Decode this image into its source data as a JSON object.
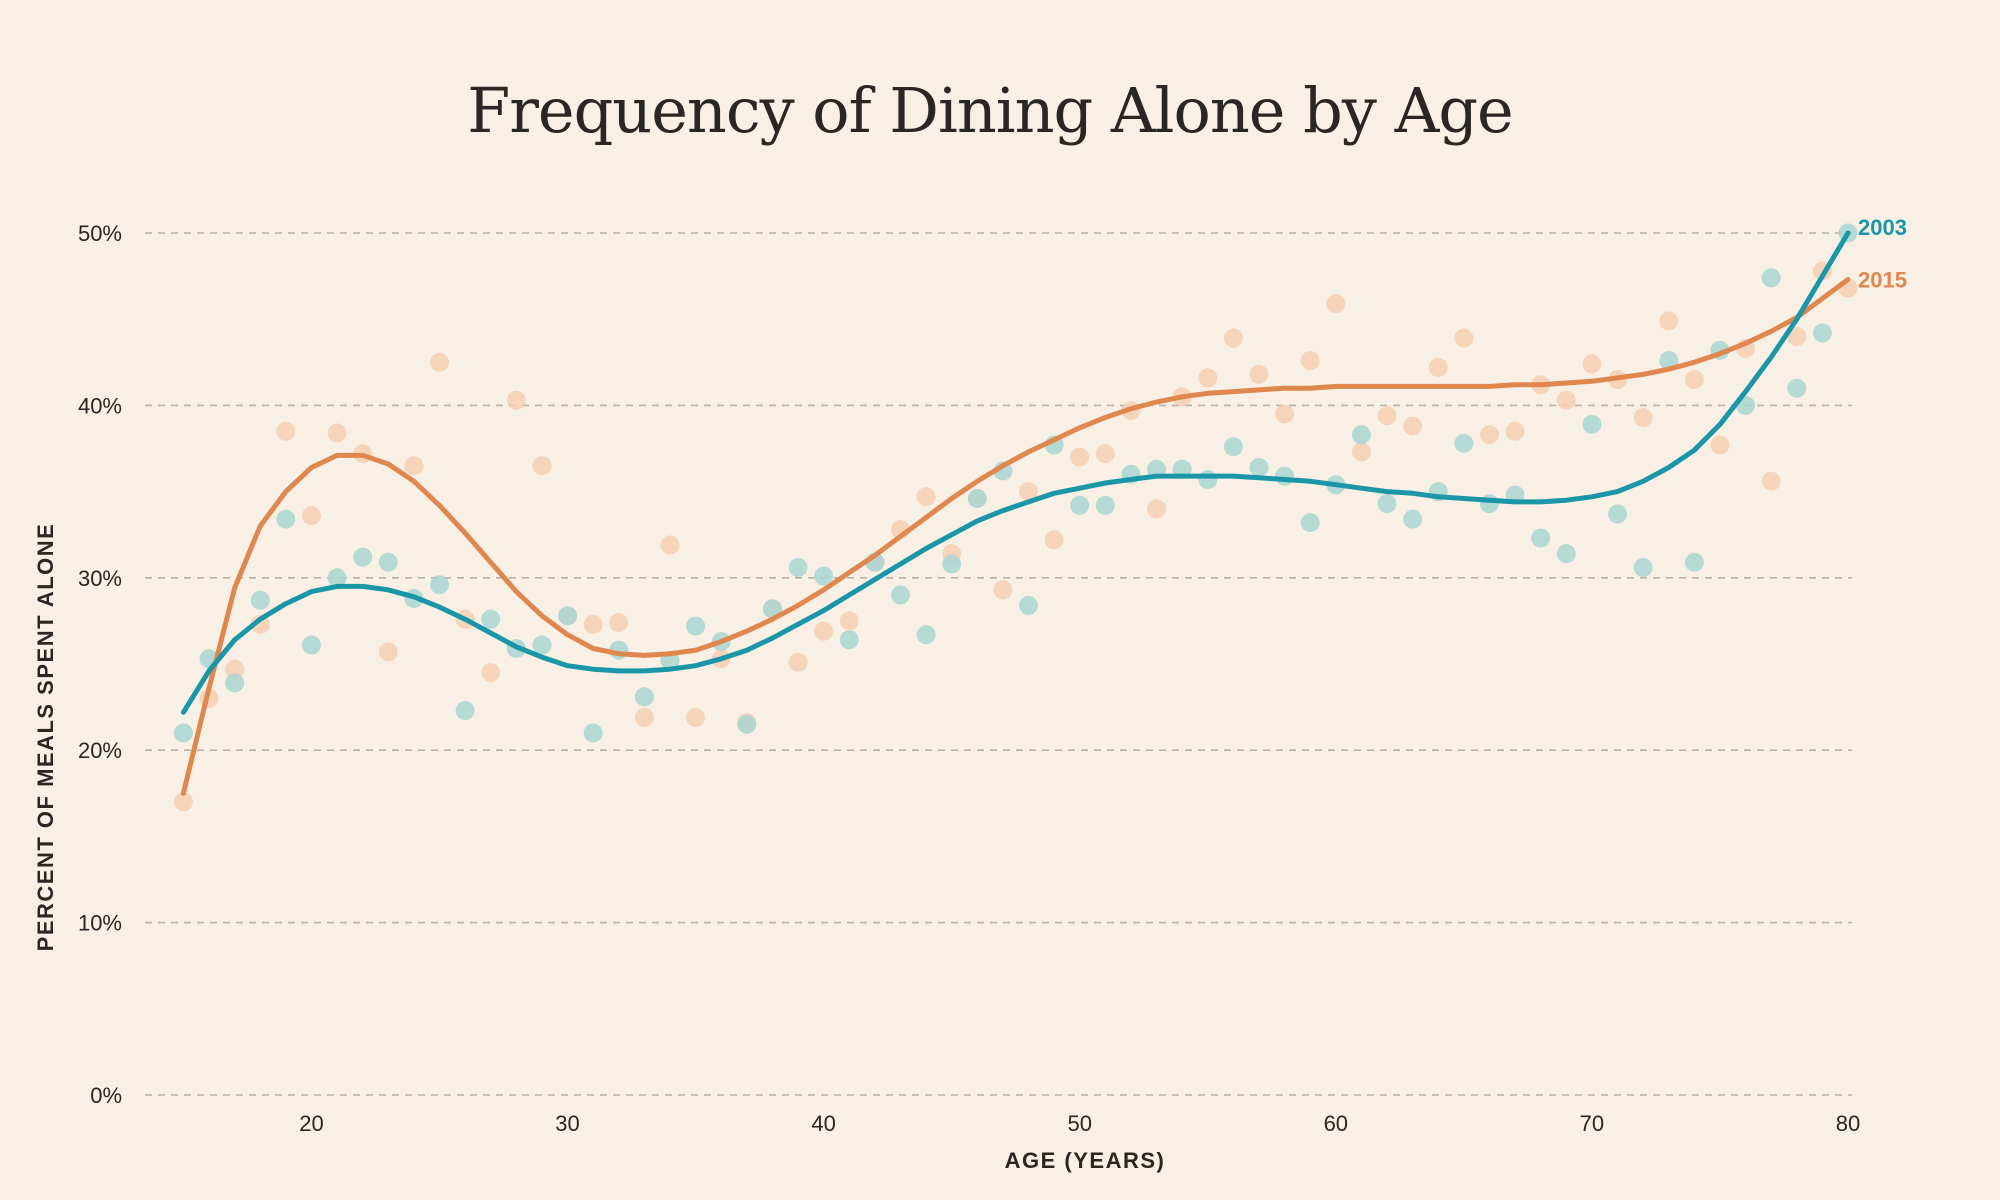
{
  "chart_data": {
    "type": "scatter",
    "title": "Frequency of Dining Alone by Age",
    "xlabel": "AGE (YEARS)",
    "ylabel": "PERCENT OF MEALS SPENT ALONE",
    "xlim": [
      13.5,
      80
    ],
    "ylim": [
      0,
      50
    ],
    "xticks": [
      20,
      30,
      40,
      50,
      60,
      70,
      80
    ],
    "yticks": [
      0,
      10,
      20,
      30,
      40,
      50
    ],
    "ytick_labels": [
      "0%",
      "10%",
      "20%",
      "30%",
      "40%",
      "50%"
    ],
    "grid": "horizontal-dashed",
    "series_label_placement": "right-end",
    "series": [
      {
        "name": "2003",
        "color": "#1a96a8",
        "point_color": "#a9d5d1",
        "x": [
          15,
          16,
          17,
          18,
          19,
          20,
          21,
          22,
          23,
          24,
          25,
          26,
          27,
          28,
          29,
          30,
          31,
          32,
          33,
          34,
          35,
          36,
          37,
          38,
          39,
          40,
          41,
          42,
          43,
          44,
          45,
          46,
          47,
          48,
          49,
          50,
          51,
          52,
          53,
          54,
          55,
          56,
          57,
          58,
          59,
          60,
          61,
          62,
          63,
          64,
          65,
          66,
          67,
          68,
          69,
          70,
          71,
          72,
          73,
          74,
          75,
          76,
          77,
          78,
          79,
          80
        ],
        "y": [
          21.0,
          25.3,
          23.9,
          28.7,
          33.4,
          26.1,
          30.0,
          31.2,
          30.9,
          28.8,
          29.6,
          22.3,
          27.6,
          25.9,
          26.1,
          27.8,
          21.0,
          25.8,
          23.1,
          25.2,
          27.2,
          26.3,
          21.5,
          28.2,
          30.6,
          30.1,
          26.4,
          30.9,
          29.0,
          26.7,
          30.8,
          34.6,
          36.2,
          28.4,
          37.7,
          34.2,
          34.2,
          36.0,
          36.3,
          36.3,
          35.7,
          37.6,
          36.4,
          35.9,
          33.2,
          35.4,
          38.3,
          34.3,
          33.4,
          35.0,
          37.8,
          34.3,
          34.8,
          32.3,
          31.4,
          38.9,
          33.7,
          30.6,
          42.6,
          30.9,
          43.2,
          40.0,
          47.4,
          41.0,
          44.2,
          50.0
        ],
        "trend_x": [
          15,
          16,
          17,
          18,
          19,
          20,
          21,
          22,
          23,
          24,
          25,
          26,
          27,
          28,
          29,
          30,
          31,
          32,
          33,
          34,
          35,
          36,
          37,
          38,
          39,
          40,
          41,
          42,
          43,
          44,
          45,
          46,
          47,
          48,
          49,
          50,
          51,
          52,
          53,
          54,
          55,
          56,
          57,
          58,
          59,
          60,
          61,
          62,
          63,
          64,
          65,
          66,
          67,
          68,
          69,
          70,
          71,
          72,
          73,
          74,
          75,
          76,
          77,
          78,
          79,
          80
        ],
        "trend_y": [
          22.2,
          24.6,
          26.4,
          27.6,
          28.5,
          29.2,
          29.5,
          29.5,
          29.3,
          28.9,
          28.3,
          27.6,
          26.8,
          26.0,
          25.4,
          24.9,
          24.7,
          24.6,
          24.6,
          24.7,
          24.9,
          25.3,
          25.8,
          26.5,
          27.3,
          28.1,
          29.0,
          29.9,
          30.8,
          31.7,
          32.5,
          33.3,
          33.9,
          34.4,
          34.9,
          35.2,
          35.5,
          35.7,
          35.9,
          35.9,
          35.9,
          35.9,
          35.8,
          35.7,
          35.6,
          35.4,
          35.2,
          35.0,
          34.9,
          34.7,
          34.6,
          34.5,
          34.4,
          34.4,
          34.5,
          34.7,
          35.0,
          35.6,
          36.4,
          37.4,
          38.9,
          40.8,
          42.8,
          45.0,
          47.5,
          50.0
        ]
      },
      {
        "name": "2015",
        "color": "#e0874f",
        "point_color": "#f4cfb3",
        "x": [
          15,
          16,
          17,
          18,
          19,
          20,
          21,
          22,
          23,
          24,
          25,
          26,
          27,
          28,
          29,
          30,
          31,
          32,
          33,
          34,
          35,
          36,
          37,
          38,
          39,
          40,
          41,
          42,
          43,
          44,
          45,
          46,
          47,
          48,
          49,
          50,
          51,
          52,
          53,
          54,
          55,
          56,
          57,
          58,
          59,
          60,
          61,
          62,
          63,
          64,
          65,
          66,
          67,
          68,
          69,
          70,
          71,
          72,
          73,
          74,
          75,
          76,
          77,
          78,
          79,
          80
        ],
        "y": [
          17.0,
          23.0,
          24.7,
          27.3,
          38.5,
          33.6,
          38.4,
          37.2,
          25.7,
          36.5,
          42.5,
          27.6,
          24.5,
          40.3,
          36.5,
          27.8,
          27.3,
          27.4,
          21.9,
          31.9,
          21.9,
          25.3,
          21.6,
          28.2,
          25.1,
          26.9,
          27.5,
          30.9,
          32.8,
          34.7,
          31.4,
          34.6,
          29.3,
          35.0,
          32.2,
          37.0,
          37.2,
          39.7,
          34.0,
          40.5,
          41.6,
          43.9,
          41.8,
          39.5,
          42.6,
          45.9,
          37.3,
          39.4,
          38.8,
          42.2,
          43.9,
          38.3,
          38.5,
          41.2,
          40.3,
          42.4,
          41.5,
          39.3,
          44.9,
          41.5,
          37.7,
          43.3,
          35.6,
          44.0,
          47.8,
          46.8
        ],
        "trend_x": [
          15,
          16,
          17,
          18,
          19,
          20,
          21,
          22,
          23,
          24,
          25,
          26,
          27,
          28,
          29,
          30,
          31,
          32,
          33,
          34,
          35,
          36,
          37,
          38,
          39,
          40,
          41,
          42,
          43,
          44,
          45,
          46,
          47,
          48,
          49,
          50,
          51,
          52,
          53,
          54,
          55,
          56,
          57,
          58,
          59,
          60,
          61,
          62,
          63,
          64,
          65,
          66,
          67,
          68,
          69,
          70,
          71,
          72,
          73,
          74,
          75,
          76,
          77,
          78,
          79,
          80
        ],
        "trend_y": [
          17.5,
          23.6,
          29.4,
          33.0,
          35.0,
          36.4,
          37.1,
          37.1,
          36.6,
          35.6,
          34.2,
          32.6,
          30.9,
          29.2,
          27.8,
          26.7,
          25.9,
          25.6,
          25.5,
          25.6,
          25.8,
          26.3,
          26.9,
          27.6,
          28.4,
          29.3,
          30.3,
          31.3,
          32.4,
          33.5,
          34.6,
          35.6,
          36.5,
          37.3,
          38.0,
          38.7,
          39.3,
          39.8,
          40.2,
          40.5,
          40.7,
          40.8,
          40.9,
          41.0,
          41.0,
          41.1,
          41.1,
          41.1,
          41.1,
          41.1,
          41.1,
          41.1,
          41.2,
          41.2,
          41.3,
          41.4,
          41.6,
          41.8,
          42.1,
          42.5,
          43.0,
          43.6,
          44.3,
          45.1,
          46.2,
          47.3
        ]
      }
    ]
  }
}
